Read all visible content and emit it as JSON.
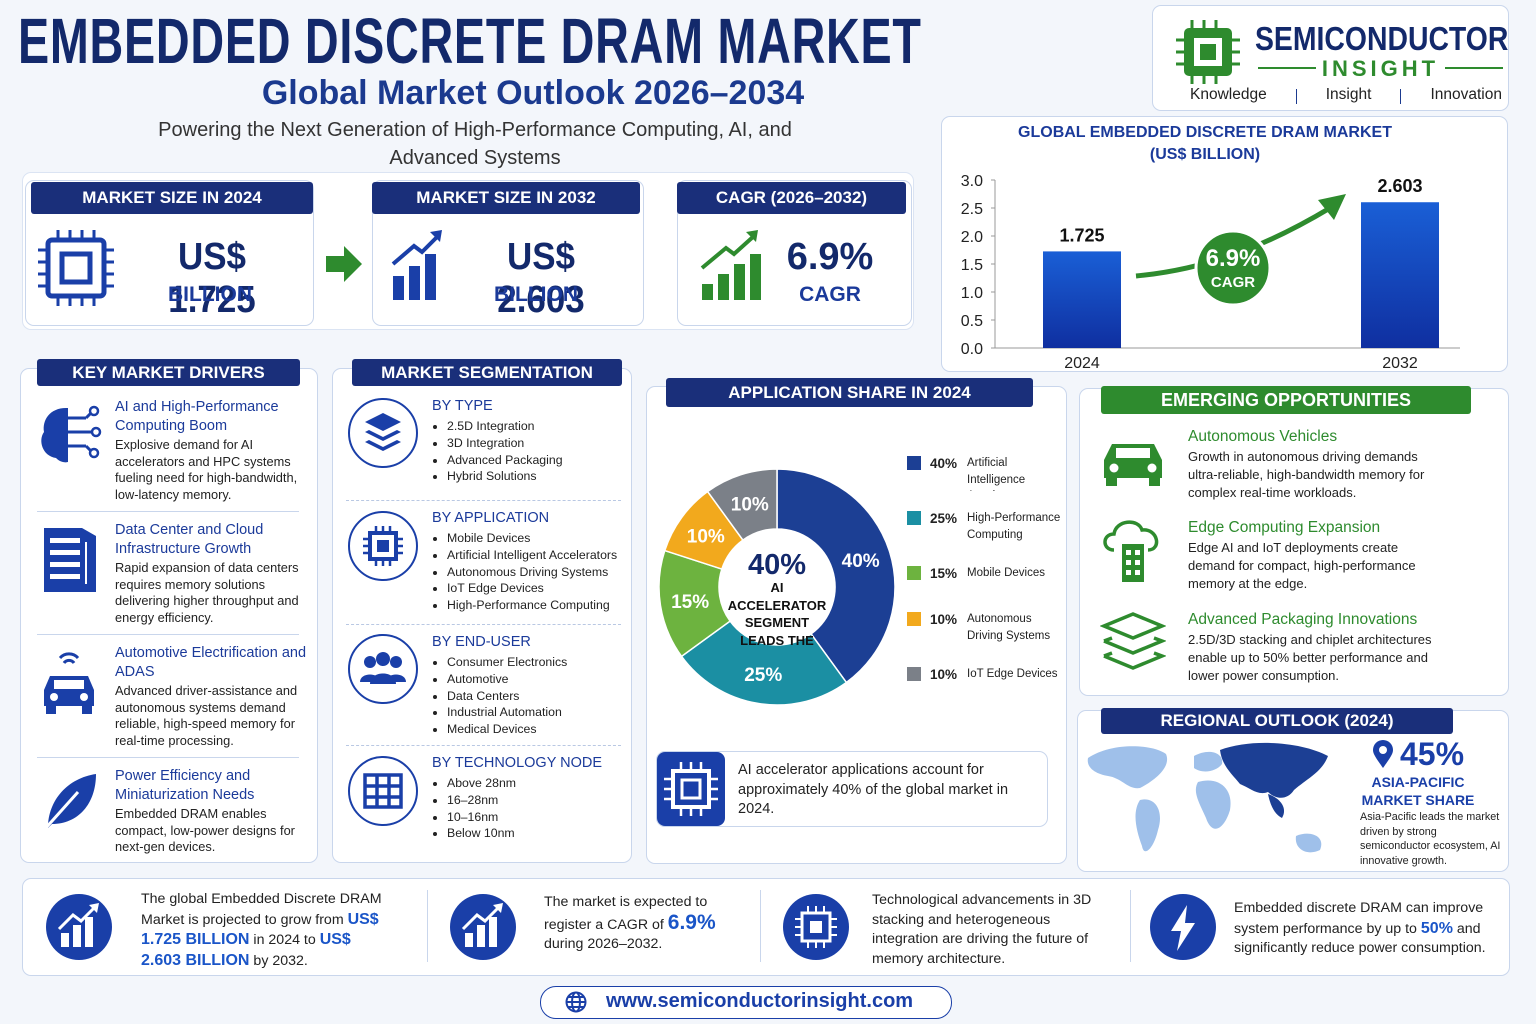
{
  "header": {
    "title": "EMBEDDED DISCRETE DRAM MARKET",
    "subtitle": "Global Market Outlook 2026–2034",
    "tagline": "Powering the Next Generation of High-Performance Computing, AI, and Advanced Systems"
  },
  "logo": {
    "name": "SEMICONDUCTOR",
    "sub": "INSIGHT",
    "motto": [
      "Knowledge",
      "Insight",
      "Innovation"
    ]
  },
  "kpis": [
    {
      "label": "MARKET SIZE IN 2024",
      "value": "US$ 1.725",
      "unit": "BILLION"
    },
    {
      "label": "MARKET SIZE IN 2032",
      "value": "US$ 2.603",
      "unit": "BILLION"
    },
    {
      "label": "CAGR (2026–2032)",
      "value": "6.9%",
      "unit": "CAGR"
    }
  ],
  "drivers": {
    "title": "KEY MARKET DRIVERS",
    "items": [
      {
        "heading": "AI and High-Performance Computing Boom",
        "text": "Explosive demand for AI accelerators and HPC systems fueling need for high-bandwidth, low-latency memory."
      },
      {
        "heading": "Data Center and Cloud Infrastructure Growth",
        "text": "Rapid expansion of data centers requires memory solutions delivering higher throughput and energy efficiency."
      },
      {
        "heading": "Automotive Electrification and ADAS",
        "text": "Advanced driver-assistance and autonomous systems demand reliable, high-speed memory for real-time processing."
      },
      {
        "heading": "Power Efficiency and Miniaturization Needs",
        "text": "Embedded DRAM enables compact, low-power designs for next-gen devices."
      }
    ]
  },
  "segmentation": {
    "title": "MARKET SEGMENTATION",
    "groups": [
      {
        "heading": "BY TYPE",
        "items": [
          "2.5D Integration",
          "3D Integration",
          "Advanced Packaging",
          "Hybrid Solutions"
        ]
      },
      {
        "heading": "BY APPLICATION",
        "items": [
          "Mobile Devices",
          "Artificial Intelligent Accelerators",
          "Autonomous Driving Systems",
          "IoT Edge Devices",
          "High-Performance Computing"
        ]
      },
      {
        "heading": "BY END-USER",
        "items": [
          "Consumer Electronics",
          "Automotive",
          "Data Centers",
          "Industrial Automation",
          "Medical Devices"
        ]
      },
      {
        "heading": "BY TECHNOLOGY NODE",
        "items": [
          "Above 28nm",
          "16–28nm",
          "10–16nm",
          "Below 10nm"
        ]
      }
    ]
  },
  "chart_data": [
    {
      "type": "bar",
      "title": "GLOBAL EMBEDDED DISCRETE DRAM MARKET",
      "subtitle": "(US$ BILLION)",
      "categories": [
        "2024",
        "2032"
      ],
      "values": [
        1.725,
        2.603
      ],
      "color": "#1a5fd6",
      "ylim": [
        0,
        3
      ],
      "yticks": [
        {
          "value": 0,
          "label": "0.0"
        },
        0.5,
        {
          "value": 1,
          "label": "1.0"
        },
        1.5,
        {
          "value": 2,
          "label": "2.0"
        },
        2.5,
        {
          "value": 3,
          "label": "3.0"
        }
      ],
      "grid": false,
      "annotation": {
        "value": "6.9%",
        "label": "CAGR"
      }
    },
    {
      "type": "donut",
      "title": "APPLICATION SHARE IN 2024",
      "categories": [
        "Artificial Intelligence Accelerators",
        "High-Performance Computing",
        "Mobile Devices",
        "Autonomous Driving Systems",
        "IoT Edge Devices"
      ],
      "values": [
        40,
        25,
        15,
        10,
        10
      ],
      "value_labels": [
        "40%",
        "25%",
        "15%",
        "10%",
        "10%"
      ],
      "colors": [
        "#1c3f94",
        "#1b8fa3",
        "#6db33f",
        "#f2a91d",
        "#7b8088"
      ],
      "center_value": "40%",
      "center_label": "AI ACCELERATOR SEGMENT LEADS THE MARKET"
    }
  ],
  "application_note": "AI accelerator applications account for approximately 40% of the global market in 2024.",
  "opportunities": {
    "title": "EMERGING OPPORTUNITIES",
    "items": [
      {
        "heading": "Autonomous Vehicles",
        "text": "Growth in autonomous driving demands ultra-reliable, high-bandwidth memory for complex real-time workloads."
      },
      {
        "heading": "Edge Computing Expansion",
        "text": "Edge AI and IoT deployments create demand for compact, high-performance memory at the edge."
      },
      {
        "heading": "Advanced Packaging Innovations",
        "text": "2.5D/3D stacking and chiplet architectures enable up to 50% better performance and lower power consumption."
      }
    ]
  },
  "regional": {
    "title": "REGIONAL OUTLOOK (2024)",
    "share": "45%",
    "region": "ASIA-PACIFIC MARKET SHARE",
    "text": "Asia-Pacific leads the market driven by strong semiconductor ecosystem, AI innovative growth."
  },
  "summary": [
    {
      "parts": [
        {
          "text": "The global Embedded Discrete DRAM Market is projected to grow from "
        },
        {
          "text": "US$ 1.725 BILLION",
          "highlight": true
        },
        {
          "text": " in 2024 to "
        },
        {
          "text": "US$ 2.603 BILLION",
          "highlight": true
        },
        {
          "text": " by 2032."
        }
      ]
    },
    {
      "parts": [
        {
          "text": "The market is expected to register a CAGR of "
        },
        {
          "text": "6.9%",
          "highlight": true
        },
        {
          "text": " during 2026–2032."
        }
      ]
    },
    {
      "parts": [
        {
          "text": "Technological advancements in 3D stacking and heterogeneous integration are driving the future of memory architecture."
        }
      ]
    },
    {
      "parts": [
        {
          "text": "Embedded discrete DRAM can improve system performance by up to "
        },
        {
          "text": "50%",
          "highlight": true
        },
        {
          "text": " and significantly reduce power consumption."
        }
      ]
    }
  ],
  "footer": {
    "url": "www.semiconductorinsight.com"
  }
}
